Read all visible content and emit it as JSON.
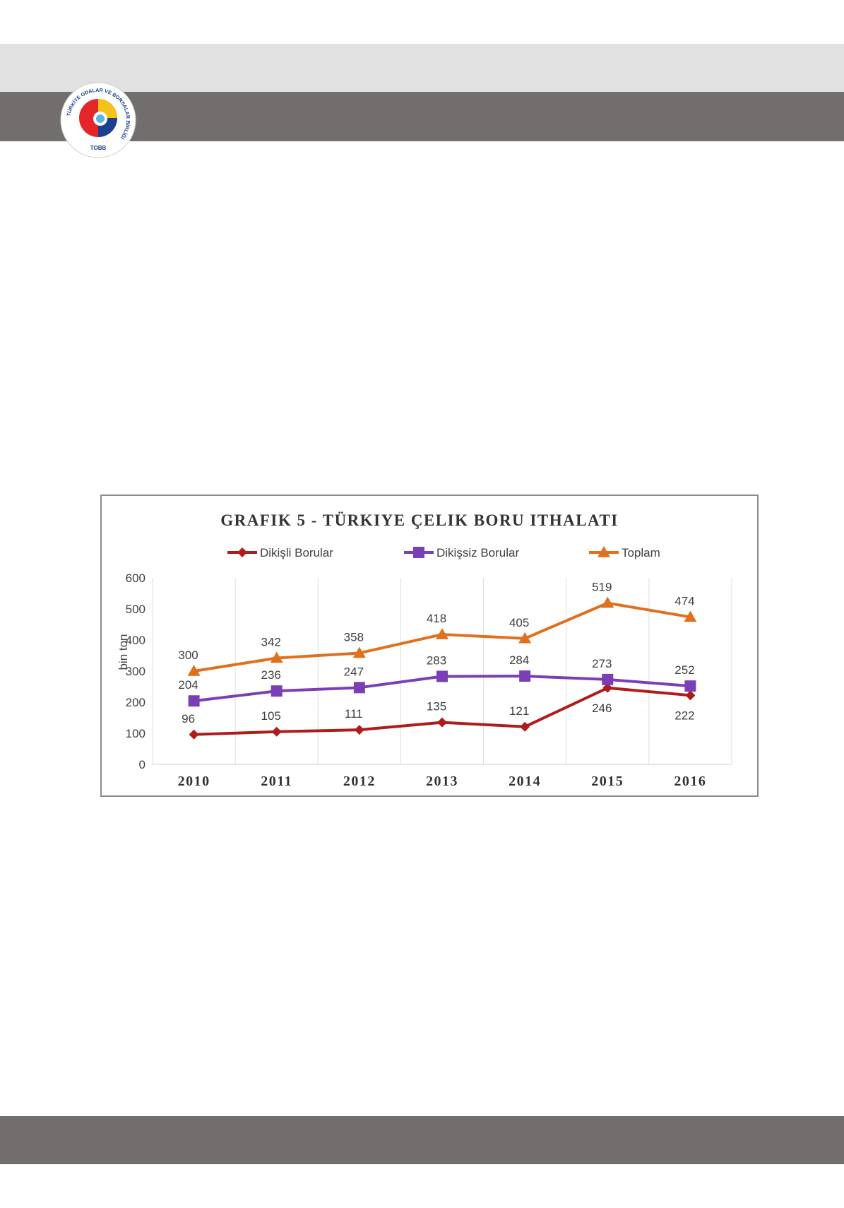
{
  "logo": {
    "ring_text": "TÜRKİYE ODALAR VE BORSALAR BİRLİĞİ",
    "abbr": "TOBB"
  },
  "colors": {
    "header": "#716e6d",
    "top_band": "#e2e1e1",
    "dikisli": "#b01c1c",
    "dikissiz": "#7b3fb5",
    "toplam": "#e0701e"
  },
  "chart_data": {
    "type": "line",
    "title": "GRAFIK 5 - TÜRKIYE ÇELIK BORU ITHALATI",
    "ylabel": "bin ton",
    "xlabel": "",
    "categories": [
      "2010",
      "2011",
      "2012",
      "2013",
      "2014",
      "2015",
      "2016"
    ],
    "ylim": [
      0,
      600
    ],
    "yticks": [
      "0",
      "100",
      "200",
      "300",
      "400",
      "500",
      "600"
    ],
    "grid": "vertical",
    "legend_position": "top",
    "series": [
      {
        "name": "Dikişli Borular",
        "marker": "diamond",
        "color": "#b01c1c",
        "values": [
          96,
          105,
          111,
          135,
          121,
          246,
          222
        ],
        "labels": [
          "96",
          "105",
          "111",
          "135",
          "121",
          "246",
          "222"
        ],
        "label_pos": [
          "above",
          "above",
          "above",
          "above",
          "above",
          "below",
          "below"
        ]
      },
      {
        "name": "Dikişsiz Borular",
        "marker": "square",
        "color": "#7b3fb5",
        "values": [
          204,
          236,
          247,
          283,
          284,
          273,
          252
        ],
        "labels": [
          "204",
          "236",
          "247",
          "283",
          "284",
          "273",
          "252"
        ],
        "label_pos": [
          "above",
          "above",
          "above",
          "above",
          "above",
          "above",
          "above"
        ]
      },
      {
        "name": "Toplam",
        "marker": "triangle",
        "color": "#e0701e",
        "values": [
          300,
          342,
          358,
          418,
          405,
          519,
          474
        ],
        "labels": [
          "300",
          "342",
          "358",
          "418",
          "405",
          "519",
          "474"
        ],
        "label_pos": [
          "above",
          "above",
          "above",
          "above",
          "above",
          "above",
          "above"
        ]
      }
    ]
  }
}
